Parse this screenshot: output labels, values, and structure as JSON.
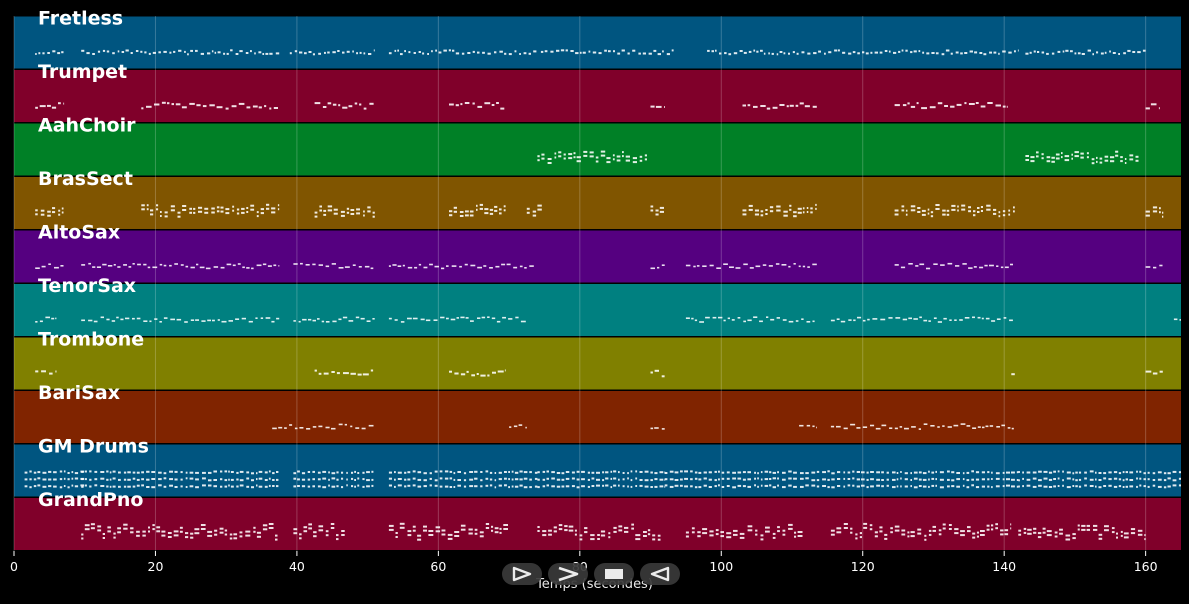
{
  "chart_data": {
    "type": "piano-roll",
    "xlabel": "Temps (secondes)",
    "xlim": [
      0,
      165
    ],
    "xticks": [
      0,
      20,
      40,
      60,
      80,
      100,
      120,
      140,
      160
    ],
    "grid": true,
    "tracks": [
      {
        "name": "Fretless",
        "color": "#005580",
        "segments": [
          [
            3,
            7
          ],
          [
            9.5,
            37.5
          ],
          [
            39,
            51
          ],
          [
            53,
            74
          ],
          [
            74.5,
            93.5
          ],
          [
            98,
            116.5
          ],
          [
            116.5,
            142
          ],
          [
            143,
            160
          ]
        ],
        "style": "bass"
      },
      {
        "name": "Trumpet",
        "color": "#80002a",
        "segments": [
          [
            3,
            7
          ],
          [
            18,
            37.5
          ],
          [
            42.5,
            51
          ],
          [
            61.5,
            69.5
          ],
          [
            90,
            92
          ],
          [
            103,
            113.5
          ],
          [
            124.5,
            140.5
          ],
          [
            160,
            162
          ]
        ],
        "style": "sparse"
      },
      {
        "name": "AahChoir",
        "color": "#008026",
        "segments": [
          [
            74,
            89.5
          ],
          [
            143,
            159
          ]
        ],
        "style": "chord"
      },
      {
        "name": "BrasSect",
        "color": "#805500",
        "segments": [
          [
            3,
            7
          ],
          [
            18,
            37.5
          ],
          [
            42.5,
            51
          ],
          [
            61.5,
            69.5
          ],
          [
            72.5,
            75
          ],
          [
            90,
            92
          ],
          [
            103,
            113.5
          ],
          [
            124.5,
            141.5
          ],
          [
            160,
            162.5
          ]
        ],
        "style": "chord"
      },
      {
        "name": "AltoSax",
        "color": "#550080",
        "segments": [
          [
            3,
            7
          ],
          [
            9.5,
            37.5
          ],
          [
            39.5,
            51
          ],
          [
            53,
            73.5
          ],
          [
            90,
            92
          ],
          [
            95,
            113.5
          ],
          [
            124.5,
            141.5
          ],
          [
            160,
            162.5
          ]
        ],
        "style": "line"
      },
      {
        "name": "TenorSax",
        "color": "#008080",
        "segments": [
          [
            3,
            6
          ],
          [
            9.5,
            37.5
          ],
          [
            39.5,
            51
          ],
          [
            53,
            72.5
          ],
          [
            95,
            113.5
          ],
          [
            115.5,
            141.5
          ],
          [
            164,
            165
          ]
        ],
        "style": "line"
      },
      {
        "name": "Trombone",
        "color": "#808000",
        "segments": [
          [
            3,
            6
          ],
          [
            42.5,
            51
          ],
          [
            61.5,
            69.5
          ],
          [
            90,
            92
          ],
          [
            141,
            141.5
          ],
          [
            160,
            162.5
          ]
        ],
        "style": "sparse"
      },
      {
        "name": "BariSax",
        "color": "#802400",
        "segments": [
          [
            36.5,
            51
          ],
          [
            70,
            72.5
          ],
          [
            90,
            92
          ],
          [
            111,
            113.5
          ],
          [
            115.5,
            141.5
          ]
        ],
        "style": "line"
      },
      {
        "name": "GM Drums",
        "color": "#005580",
        "segments": [
          [
            1.5,
            10
          ],
          [
            9.5,
            37.5
          ],
          [
            39.5,
            51
          ],
          [
            53,
            74
          ],
          [
            74,
            92
          ],
          [
            92,
            115
          ],
          [
            115,
            142
          ],
          [
            142,
            165
          ]
        ],
        "style": "drums"
      },
      {
        "name": "GrandPno",
        "color": "#80002a",
        "segments": [
          [
            9.5,
            37.5
          ],
          [
            39.5,
            47
          ],
          [
            53,
            70
          ],
          [
            74,
            91.5
          ],
          [
            95,
            111.5
          ],
          [
            115.5,
            141
          ],
          [
            142,
            160
          ]
        ],
        "style": "piano"
      }
    ]
  },
  "player": {
    "controls": [
      {
        "icon": "play-icon",
        "label": "play"
      },
      {
        "icon": "fast-forward-icon",
        "label": "fast-forward"
      },
      {
        "icon": "stop-icon",
        "label": "stop"
      },
      {
        "icon": "rewind-icon",
        "label": "rewind"
      }
    ]
  }
}
